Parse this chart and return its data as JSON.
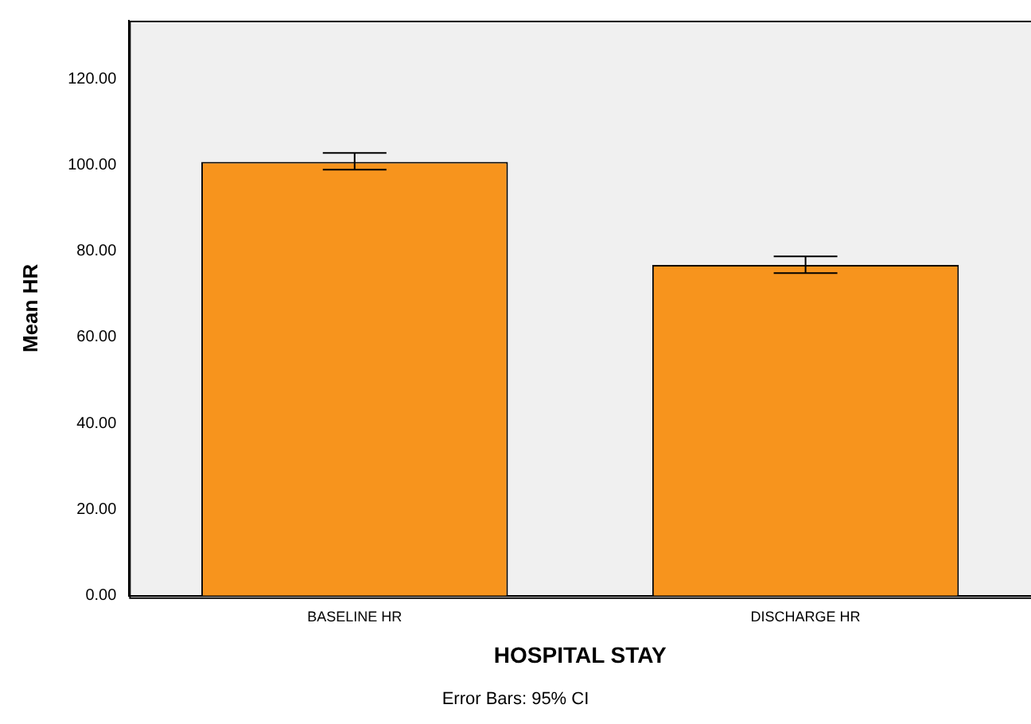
{
  "chart_data": {
    "type": "bar",
    "xlabel": "HOSPITAL STAY",
    "ylabel": "Mean HR",
    "categories": [
      "BASELINE HR",
      "DISCHARGE HR"
    ],
    "values": [
      100.7,
      76.8
    ],
    "errors": [
      [
        98.9,
        102.8
      ],
      [
        74.9,
        78.8
      ]
    ],
    "color": "#f7941d",
    "ylim": [
      0,
      133.5
    ],
    "yticks": [
      {
        "value": 0,
        "label": "0.00"
      },
      {
        "value": 20,
        "label": "20.00"
      },
      {
        "value": 40,
        "label": "40.00"
      },
      {
        "value": 60,
        "label": "60.00"
      },
      {
        "value": 80,
        "label": "80.00"
      },
      {
        "value": 100,
        "label": "100.00"
      },
      {
        "value": 120,
        "label": "120.00"
      }
    ],
    "grid": false,
    "legend": false,
    "annotations": [
      "Error Bars: 95% CI"
    ]
  }
}
